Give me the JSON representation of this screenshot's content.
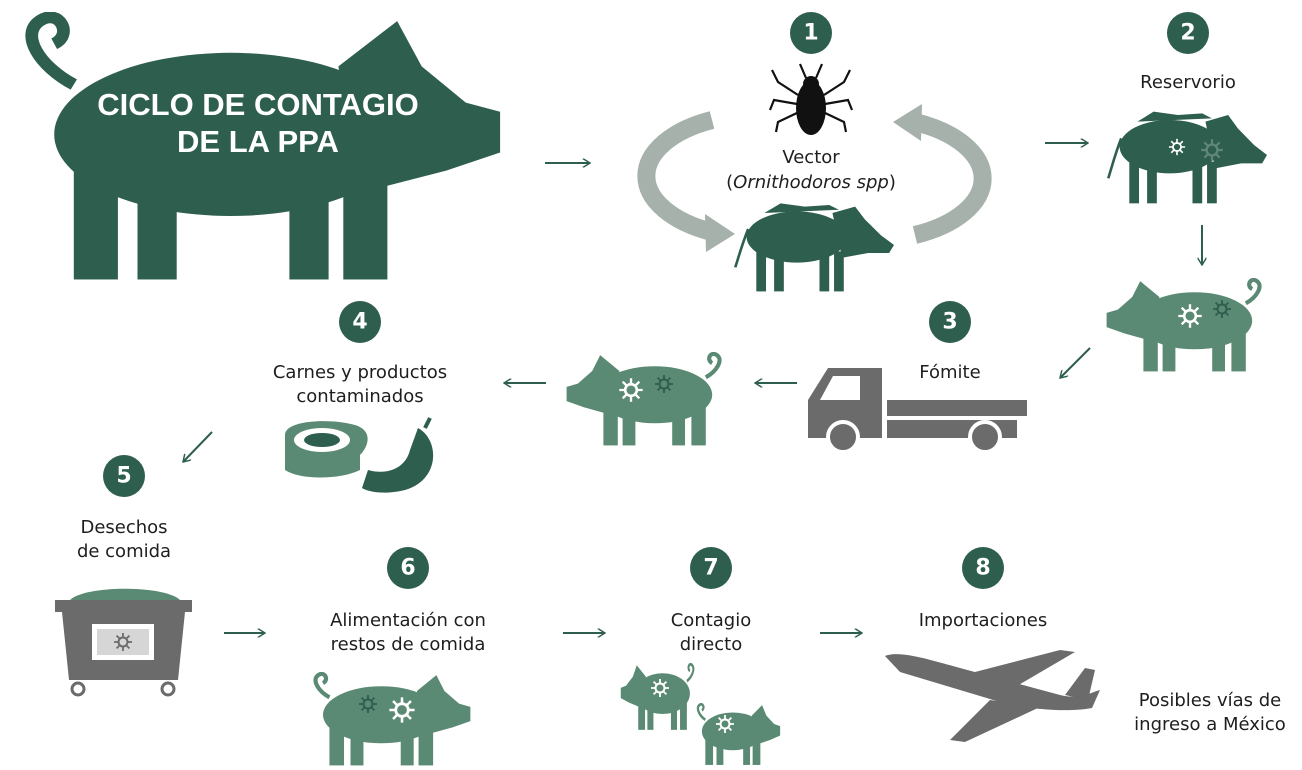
{
  "title": {
    "lines": [
      "CICLO DE CONTAGIO",
      "DE LA PPA"
    ]
  },
  "nodes": [
    {
      "number": 1,
      "label": [
        "Vector"
      ],
      "detail": [
        "(",
        "Ornithodoros spp",
        ")"
      ]
    },
    {
      "number": 2,
      "label": [
        "Reservorio"
      ]
    },
    {
      "number": 3,
      "label": [
        "Fómite"
      ]
    },
    {
      "number": 4,
      "label": [
        "Carnes y productos",
        "contaminados"
      ]
    },
    {
      "number": 5,
      "label": [
        "Desechos",
        "de comida"
      ]
    },
    {
      "number": 6,
      "label": [
        "Alimentación con",
        "restos de comida"
      ]
    },
    {
      "number": 7,
      "label": [
        "Contagio",
        "directo"
      ]
    },
    {
      "number": 8,
      "label": [
        "Importaciones"
      ]
    }
  ],
  "note": {
    "lines": [
      "Posibles vías de",
      "ingreso a México"
    ]
  }
}
